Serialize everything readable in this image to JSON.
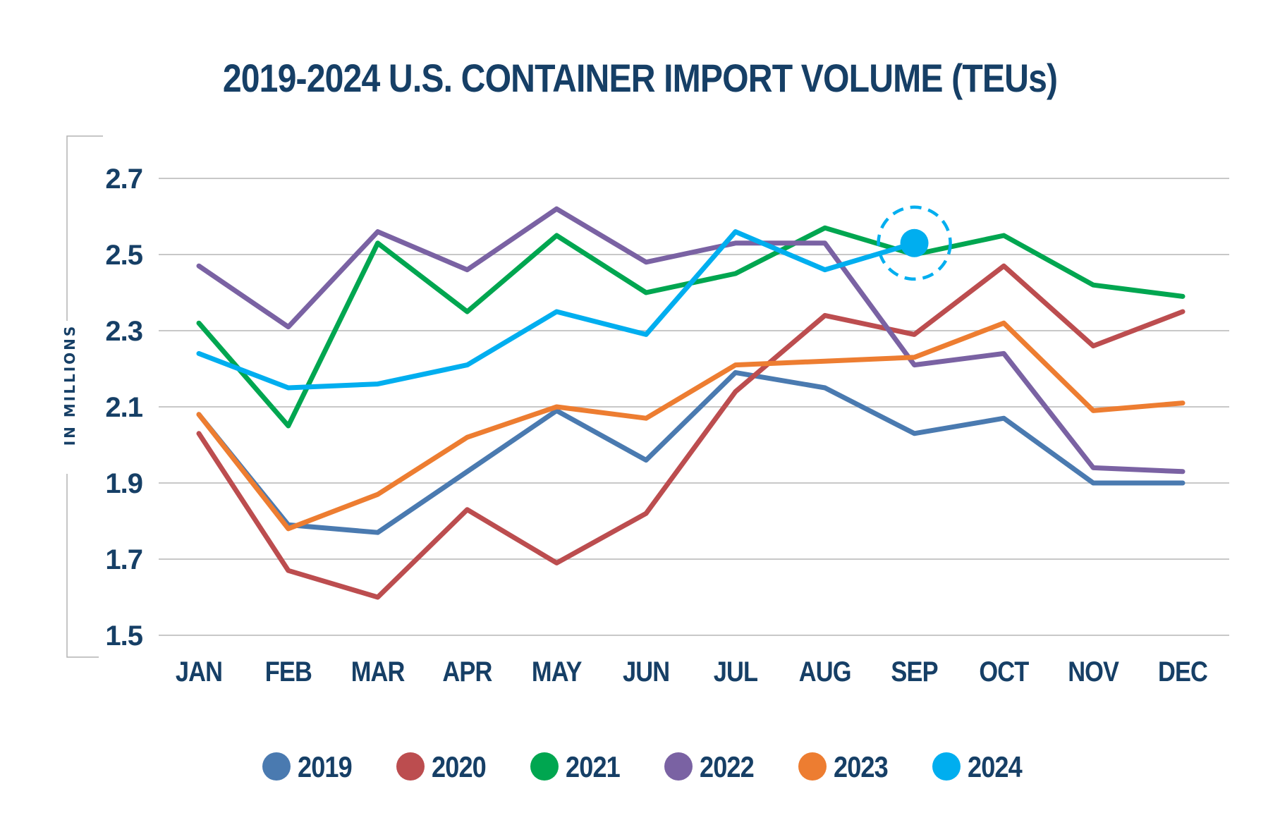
{
  "chart_data": {
    "type": "line",
    "title": "2019-2024 U.S. CONTAINER IMPORT VOLUME (TEUs)",
    "xlabel": "",
    "ylabel": "IN MILLIONS",
    "categories": [
      "JAN",
      "FEB",
      "MAR",
      "APR",
      "MAY",
      "JUN",
      "JUL",
      "AUG",
      "SEP",
      "OCT",
      "NOV",
      "DEC"
    ],
    "yticks": [
      "2.7",
      "2.5",
      "2.3",
      "2.1",
      "1.9",
      "1.7",
      "1.5"
    ],
    "ylim": [
      1.5,
      2.7
    ],
    "grid": true,
    "legend_position": "bottom",
    "series": [
      {
        "name": "2019",
        "color": "#4a7ab0",
        "values": [
          2.08,
          1.79,
          1.77,
          1.93,
          2.09,
          1.96,
          2.19,
          2.15,
          2.03,
          2.07,
          1.9,
          1.9
        ]
      },
      {
        "name": "2020",
        "color": "#bc4d4f",
        "values": [
          2.03,
          1.67,
          1.6,
          1.83,
          1.69,
          1.82,
          2.14,
          2.34,
          2.29,
          2.47,
          2.26,
          2.35
        ]
      },
      {
        "name": "2021",
        "color": "#00a650",
        "values": [
          2.32,
          2.05,
          2.53,
          2.35,
          2.55,
          2.4,
          2.45,
          2.57,
          2.5,
          2.55,
          2.42,
          2.39
        ]
      },
      {
        "name": "2022",
        "color": "#7a62a3",
        "values": [
          2.47,
          2.31,
          2.56,
          2.46,
          2.62,
          2.48,
          2.53,
          2.53,
          2.21,
          2.24,
          1.94,
          1.93
        ]
      },
      {
        "name": "2023",
        "color": "#ed7d31",
        "values": [
          2.08,
          1.78,
          1.87,
          2.02,
          2.1,
          2.07,
          2.21,
          2.22,
          2.23,
          2.32,
          2.09,
          2.11
        ]
      },
      {
        "name": "2024",
        "color": "#00aeef",
        "values": [
          2.24,
          2.15,
          2.16,
          2.21,
          2.35,
          2.29,
          2.56,
          2.46,
          2.53
        ]
      }
    ],
    "annotations": [
      {
        "type": "highlight-circle",
        "series": "2024",
        "category": "SEP",
        "value": 2.53,
        "style": "dashed"
      }
    ]
  },
  "colors": {
    "title": "#163f66",
    "grid": "#c8c8c8",
    "axis_bracket": "#b4b4b4"
  }
}
